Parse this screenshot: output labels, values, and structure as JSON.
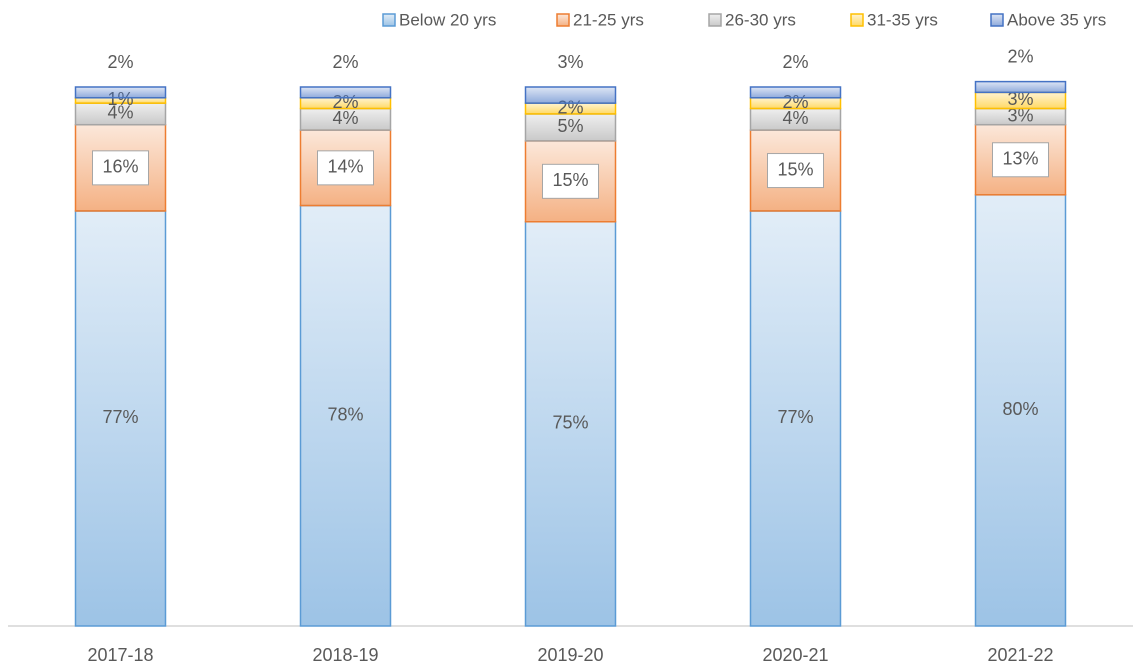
{
  "chart_data": {
    "type": "stacked_bar",
    "categories": [
      "2017-18",
      "2018-19",
      "2019-20",
      "2020-21",
      "2021-22"
    ],
    "series": [
      {
        "name": "Below 20 yrs",
        "color": "#5b9bd5",
        "values": [
          77,
          78,
          75,
          77,
          80
        ],
        "value_labels": [
          "77%",
          "78%",
          "75%",
          "77%",
          "80%"
        ]
      },
      {
        "name": "21-25 yrs",
        "color": "#ed7d31",
        "values": [
          16,
          14,
          15,
          15,
          13
        ],
        "value_labels": [
          "16%",
          "14%",
          "15%",
          "15%",
          "13%"
        ]
      },
      {
        "name": "26-30 yrs",
        "color": "#a5a5a5",
        "values": [
          4,
          4,
          5,
          4,
          3
        ],
        "value_labels": [
          "4%",
          "4%",
          "5%",
          "4%",
          "3%"
        ]
      },
      {
        "name": "31-35 yrs",
        "color": "#ffc000",
        "values": [
          1,
          2,
          2,
          2,
          3
        ],
        "value_labels": [
          "1%",
          "2%",
          "2%",
          "2%",
          "3%"
        ]
      },
      {
        "name": "Above 35 yrs",
        "color": "#4472c4",
        "values": [
          2,
          2,
          3,
          2,
          2
        ],
        "value_labels": [
          "2%",
          "2%",
          "3%",
          "2%",
          "2%"
        ]
      }
    ],
    "legend": "top-right"
  }
}
